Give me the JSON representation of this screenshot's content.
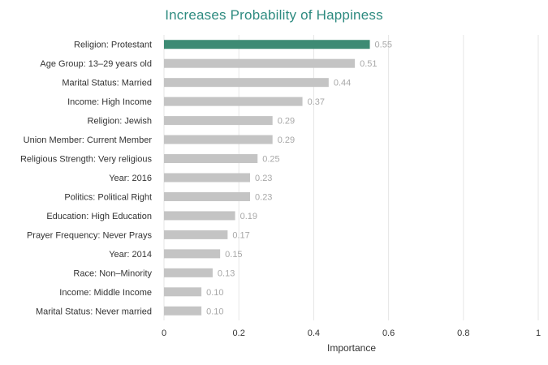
{
  "chart_data": {
    "type": "bar",
    "orientation": "horizontal",
    "title": "Increases Probability of Happiness",
    "xlabel": "Importance",
    "ylabel": "",
    "xlim": [
      0,
      1
    ],
    "xticks": [
      "0",
      "0.2",
      "0.4",
      "0.6",
      "0.8",
      "1"
    ],
    "grid": true,
    "categories": [
      "Religion: Protestant",
      "Age Group: 13–29 years old",
      "Marital Status: Married",
      "Income: High Income",
      "Religion: Jewish",
      "Union Member: Current Member",
      "Religious Strength: Very religious",
      "Year: 2016",
      "Politics: Political Right",
      "Education: High Education",
      "Prayer Frequency: Never Prays",
      "Year: 2014",
      "Race: Non–Minority",
      "Income: Middle Income",
      "Marital Status: Never married"
    ],
    "values": [
      0.55,
      0.51,
      0.44,
      0.37,
      0.29,
      0.29,
      0.25,
      0.23,
      0.23,
      0.19,
      0.17,
      0.15,
      0.13,
      0.1,
      0.1
    ],
    "value_labels": [
      "0.55",
      "0.51",
      "0.44",
      "0.37",
      "0.29",
      "0.29",
      "0.25",
      "0.23",
      "0.23",
      "0.19",
      "0.17",
      "0.15",
      "0.13",
      "0.10",
      "0.10"
    ],
    "colors": {
      "highlight": "#3d8b74",
      "bar": "#c4c4c4",
      "value_label": "#a8a8a8",
      "title": "#2e8b80",
      "grid": "#e6e6e6"
    },
    "highlight_index": 0
  }
}
